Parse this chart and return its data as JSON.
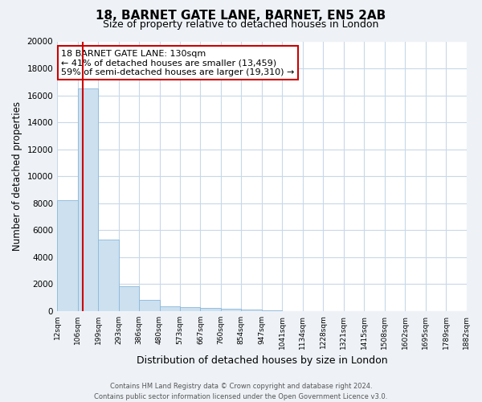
{
  "title": "18, BARNET GATE LANE, BARNET, EN5 2AB",
  "subtitle": "Size of property relative to detached houses in London",
  "xlabel": "Distribution of detached houses by size in London",
  "ylabel": "Number of detached properties",
  "bar_values": [
    8200,
    16500,
    5300,
    1850,
    800,
    350,
    300,
    200,
    150,
    100,
    50,
    0,
    0,
    0,
    0,
    0,
    0,
    0,
    0,
    0
  ],
  "bar_labels": [
    "12sqm",
    "106sqm",
    "199sqm",
    "293sqm",
    "386sqm",
    "480sqm",
    "573sqm",
    "667sqm",
    "760sqm",
    "854sqm",
    "947sqm",
    "1041sqm",
    "1134sqm",
    "1228sqm",
    "1321sqm",
    "1415sqm",
    "1508sqm",
    "1602sqm",
    "1695sqm",
    "1789sqm",
    "1882sqm"
  ],
  "bar_color": "#cce0f0",
  "bar_edge_color": "#8ab8d8",
  "vline_color": "#cc0000",
  "vline_x": 0.25,
  "annotation_title": "18 BARNET GATE LANE: 130sqm",
  "annotation_line1": "← 41% of detached houses are smaller (13,459)",
  "annotation_line2": "59% of semi-detached houses are larger (19,310) →",
  "annotation_box_color": "#ffffff",
  "annotation_border_color": "#cc0000",
  "ylim": [
    0,
    20000
  ],
  "yticks": [
    0,
    2000,
    4000,
    6000,
    8000,
    10000,
    12000,
    14000,
    16000,
    18000,
    20000
  ],
  "footer_line1": "Contains HM Land Registry data © Crown copyright and database right 2024.",
  "footer_line2": "Contains public sector information licensed under the Open Government Licence v3.0.",
  "bg_color": "#eef2f7",
  "plot_bg_color": "#ffffff",
  "grid_color": "#c8d8e8"
}
